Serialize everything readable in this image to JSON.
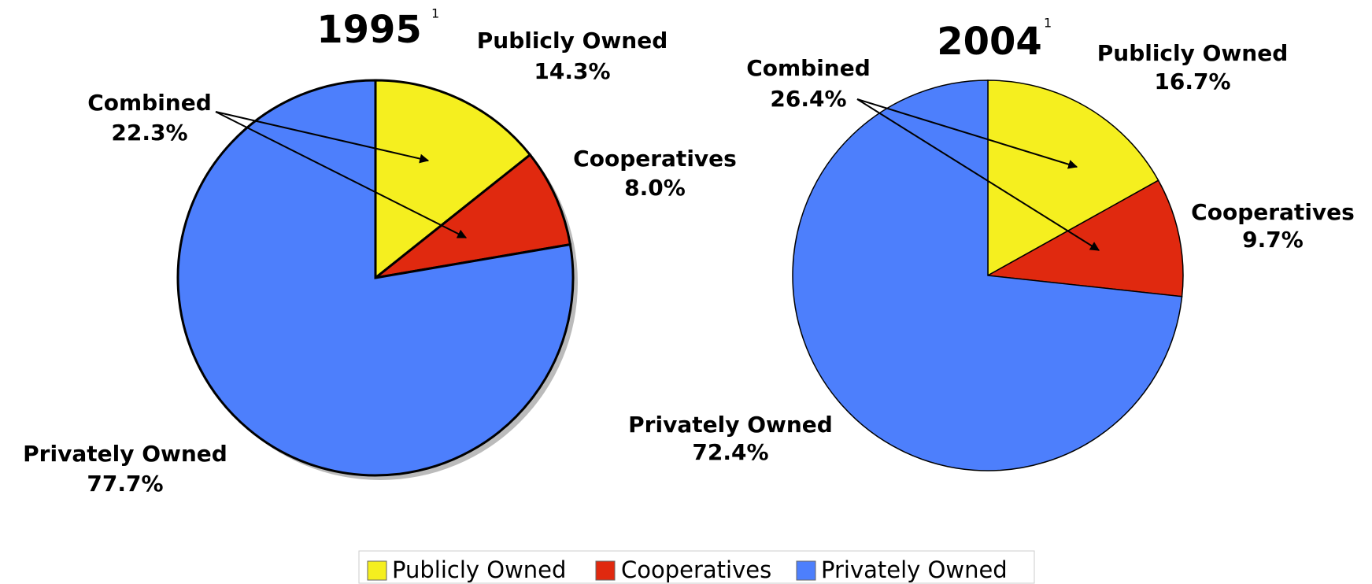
{
  "chart_data": [
    {
      "type": "pie",
      "title": "1995",
      "title_note": "1",
      "categories": [
        "Publicly Owned",
        "Cooperatives",
        "Privately Owned"
      ],
      "values": [
        14.3,
        8.0,
        77.7
      ],
      "value_labels": [
        "14.3%",
        "8.0%",
        "77.7%"
      ],
      "colors": [
        "#f5ef1f",
        "#e0290f",
        "#4d7ffc"
      ],
      "annotation": {
        "text": "Combined",
        "value": 22.3,
        "value_label": "22.3%"
      }
    },
    {
      "type": "pie",
      "title": "2004",
      "title_note": "1",
      "categories": [
        "Publicly Owned",
        "Cooperatives",
        "Privately Owned"
      ],
      "values": [
        16.7,
        9.7,
        72.4
      ],
      "value_labels": [
        "16.7%",
        "9.7%",
        "72.4%"
      ],
      "colors": [
        "#f5ef1f",
        "#e0290f",
        "#4d7ffc"
      ],
      "annotation": {
        "text": "Combined",
        "value": 26.4,
        "value_label": "26.4%"
      }
    }
  ]
}
